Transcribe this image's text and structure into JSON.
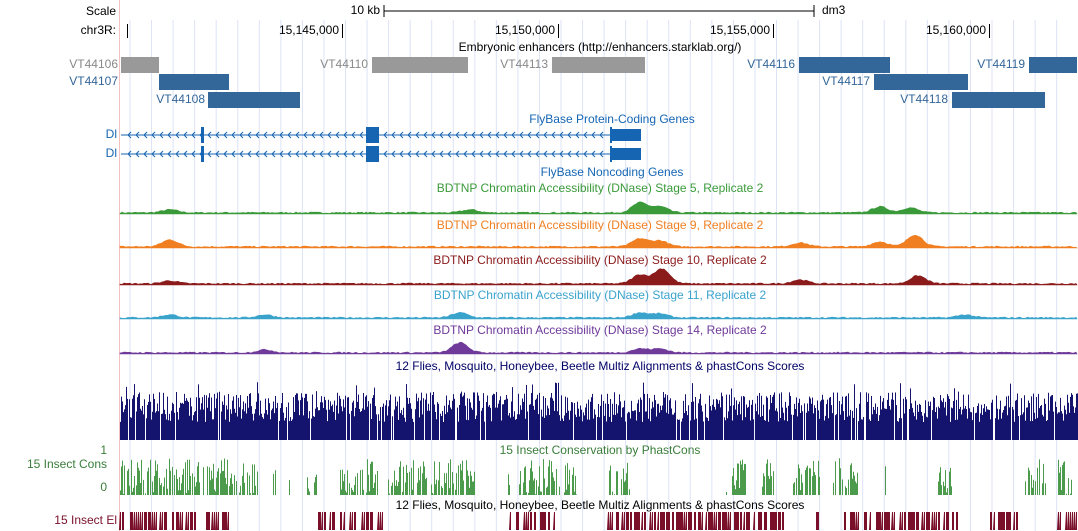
{
  "ruler": {
    "scale_label": "Scale",
    "scale_value": "10 kb",
    "assembly": "dm3",
    "chrom": "chr3R:",
    "positions": [
      "15,145,000",
      "15,150,000",
      "15,155,000",
      "15,160,000"
    ]
  },
  "enhancers": {
    "title": "Embryonic enhancers (http://enhancers.starklab.org/)",
    "items": [
      "VT44106",
      "VT44110",
      "VT44113",
      "VT44116",
      "VT44119",
      "VT44107",
      "VT44117",
      "VT44108",
      "VT44118"
    ]
  },
  "genes": {
    "title": "FlyBase Protein-Coding Genes",
    "rows": [
      "Dl",
      "Dl"
    ]
  },
  "noncoding": {
    "title": "FlyBase Noncoding Genes"
  },
  "dnase": [
    "BDTNP Chromatin Accessibility (DNase) Stage 5, Replicate 2",
    "BDTNP Chromatin Accessibility (DNase) Stage 9, Replicate 2",
    "BDTNP Chromatin Accessibility (DNase) Stage 10, Replicate 2",
    "BDTNP Chromatin Accessibility (DNase) Stage 11, Replicate 2",
    "BDTNP Chromatin Accessibility (DNase) Stage 14, Replicate 2"
  ],
  "multiz": {
    "title": "12 Flies, Mosquito, Honeybee, Beetle Multiz Alignments & phastCons Scores"
  },
  "conservation": {
    "title": "15 Insect Conservation by PhastCons",
    "label": "15 Insect Cons",
    "max": "1",
    "min": "0"
  },
  "elements": {
    "title": "12 Flies, Mosquito, Honeybee, Beetle Multiz Alignments & phastCons Scores",
    "label": "15 Insect El"
  }
}
